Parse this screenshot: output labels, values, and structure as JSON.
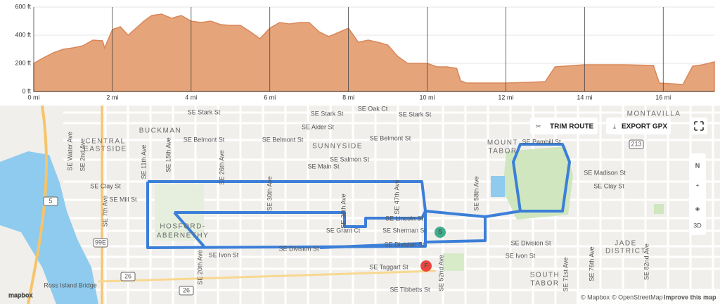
{
  "chart_data": {
    "type": "area",
    "color": "#e6a47a",
    "line_color": "#d8875a",
    "grid": true,
    "x": [
      0,
      0.25,
      0.5,
      0.75,
      1.0,
      1.25,
      1.5,
      1.75,
      1.8,
      2.0,
      2.2,
      2.4,
      2.6,
      2.8,
      3.0,
      3.25,
      3.5,
      3.75,
      4.0,
      4.25,
      4.5,
      4.75,
      5.0,
      5.25,
      5.5,
      5.75,
      6.0,
      6.25,
      6.5,
      6.75,
      7.0,
      7.25,
      7.5,
      7.75,
      8.0,
      8.25,
      8.5,
      8.75,
      9.0,
      9.25,
      9.5,
      10.0,
      10.25,
      10.5,
      10.75,
      10.85,
      11.0,
      12.0,
      13.0,
      13.25,
      14.0,
      15.0,
      15.75,
      15.9,
      16.5,
      16.75,
      17.0,
      17.3
    ],
    "values": [
      200,
      240,
      275,
      300,
      310,
      325,
      365,
      360,
      310,
      440,
      460,
      400,
      450,
      500,
      540,
      550,
      520,
      540,
      500,
      490,
      500,
      475,
      470,
      470,
      425,
      375,
      450,
      490,
      480,
      490,
      490,
      425,
      390,
      420,
      450,
      350,
      365,
      350,
      330,
      250,
      200,
      200,
      175,
      175,
      165,
      75,
      60,
      60,
      70,
      175,
      190,
      190,
      185,
      60,
      50,
      180,
      190,
      210
    ],
    "xlim": [
      0,
      17.3
    ],
    "ylim": [
      0,
      600
    ],
    "xticks": [
      {
        "value": 0,
        "label": "0 mi"
      },
      {
        "value": 2,
        "label": "2 mi"
      },
      {
        "value": 4,
        "label": "4 mi"
      },
      {
        "value": 6,
        "label": "6 mi"
      },
      {
        "value": 8,
        "label": "8 mi"
      },
      {
        "value": 10,
        "label": "10 mi"
      },
      {
        "value": 12,
        "label": "12 mi"
      },
      {
        "value": 14,
        "label": "14 mi"
      },
      {
        "value": 16,
        "label": "16 mi"
      }
    ],
    "yticks": [
      {
        "value": 0,
        "label": "0 ft"
      },
      {
        "value": 200,
        "label": "200 ft"
      },
      {
        "value": 400,
        "label": "400 ft"
      },
      {
        "value": 600,
        "label": "600 ft"
      }
    ]
  },
  "map": {
    "labels": [
      "SE Stark St",
      "SE Stark St",
      "SE Oak Ct",
      "SE Stark St",
      "SE Alder St",
      "SE Belmont St",
      "SE Belmont St",
      "SE Belmont St",
      "SE Salmon St",
      "SE Main St",
      "SE Clay St",
      "SE Mill St",
      "SE Lincoln St",
      "SE Grant Ct",
      "SE Sherman St",
      "SE Division St",
      "SE Division St",
      "SE Division St",
      "SE Ivon St",
      "SE Ivon St",
      "SE Taggart St",
      "Ross Island Bridge",
      "SE Tibbetts St",
      "SE Madison St",
      "SE Clay St",
      "SE Pamhill St",
      "SE Water Ave",
      "SE 2nd Ave",
      "SE 7th Ave",
      "SE 11th Ave",
      "SE 15th Ave",
      "SE 20th Ave",
      "SE 26th Ave",
      "SE 30th Ave",
      "SE 39th Ave",
      "SE 47th Ave",
      "SE 52nd Ave",
      "SE 58th Ave",
      "SE 71st Ave",
      "SE 76th Ave",
      "SE 82nd Ave"
    ],
    "districts": [
      "BUCKMAN",
      "CENTRAL",
      "EASTSIDE",
      "SUNNYSIDE",
      "MOUNT",
      "TABOR",
      "HOSFORD-",
      "ABERNETHY",
      "MONTAVILLA",
      "JADE",
      "DISTRICT",
      "SOUTH",
      "TABOR"
    ],
    "buttons": {
      "trim": "TRIM ROUTE",
      "export": "EXPORT GPX"
    },
    "compass": "N",
    "three_d": "3D",
    "logo": "mapbox",
    "attribution": [
      "© Mapbox",
      "© OpenStreetMap",
      "Improve this map"
    ],
    "markers": {
      "start": "S",
      "finish": "F"
    },
    "shields": [
      "213",
      "99E",
      "26",
      "5",
      "26"
    ]
  }
}
